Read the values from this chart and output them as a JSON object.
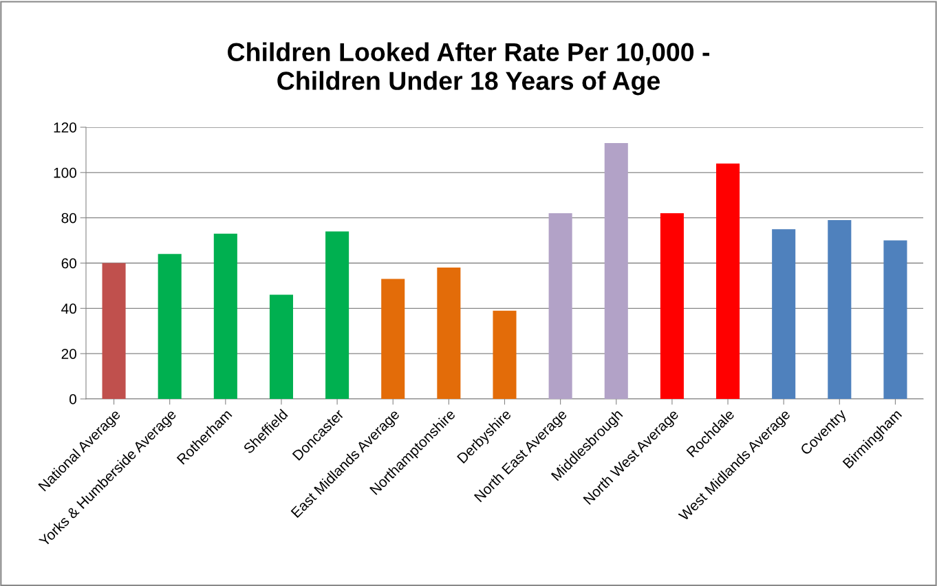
{
  "chart_data": {
    "type": "bar",
    "title": "Children Looked After Rate Per 10,000 -\nChildren Under 18 Years of Age",
    "categories": [
      "National Average",
      "Yorks & Humberside Average",
      "Rotherham",
      "Sheffield",
      "Doncaster",
      "East Midlands Average",
      "Northamptonshire",
      "Derbyshire",
      "North East Average",
      "Middlesbrough",
      "North West Average",
      "Rochdale",
      "West Midlands Average",
      "Coventry",
      "Birmingham"
    ],
    "values": [
      60,
      64,
      73,
      46,
      74,
      53,
      58,
      39,
      82,
      113,
      82,
      104,
      75,
      79,
      70
    ],
    "colors": [
      "#c0504d",
      "#00b050",
      "#00b050",
      "#00b050",
      "#00b050",
      "#e36c09",
      "#e36c09",
      "#e36c09",
      "#b2a2c7",
      "#b2a2c7",
      "#ff0000",
      "#ff0000",
      "#4f81bd",
      "#4f81bd",
      "#4f81bd"
    ],
    "ylim": [
      0,
      120
    ],
    "yticks": [
      0,
      20,
      40,
      60,
      80,
      100,
      120
    ],
    "grid": "y"
  }
}
